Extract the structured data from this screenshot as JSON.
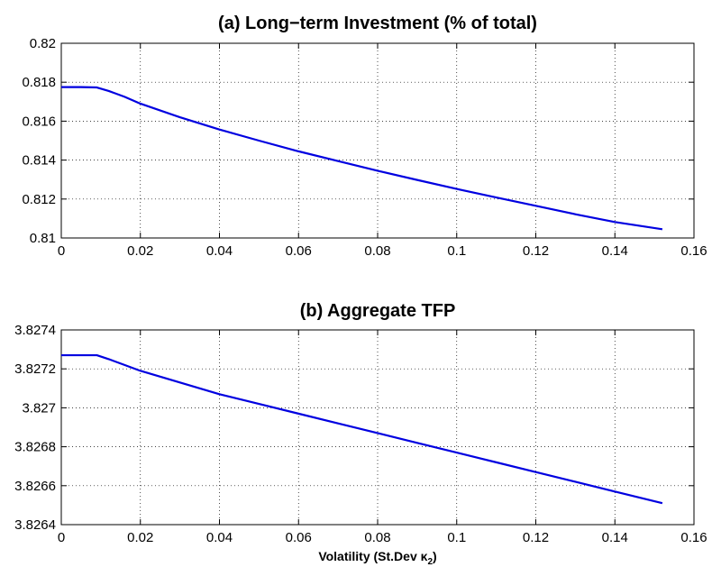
{
  "chart_data": [
    {
      "type": "line",
      "title": "(a) Long−term Investment (% of total)",
      "xlabel": "",
      "ylabel": "",
      "xlim": [
        0,
        0.16
      ],
      "ylim": [
        0.81,
        0.82
      ],
      "grid": true,
      "line_color": "#0000e0",
      "xticks": [
        "0",
        "0.02",
        "0.04",
        "0.06",
        "0.08",
        "0.1",
        "0.12",
        "0.14",
        "0.16"
      ],
      "yticks": [
        "0.81",
        "0.812",
        "0.814",
        "0.816",
        "0.818",
        "0.82"
      ],
      "series": [
        {
          "x": [
            0,
            0.005,
            0.009,
            0.012,
            0.016,
            0.02,
            0.03,
            0.04,
            0.05,
            0.06,
            0.07,
            0.08,
            0.09,
            0.1,
            0.11,
            0.12,
            0.13,
            0.14,
            0.152
          ],
          "y": [
            0.81775,
            0.81775,
            0.81773,
            0.81755,
            0.81725,
            0.8169,
            0.8162,
            0.81557,
            0.815,
            0.81445,
            0.81395,
            0.81345,
            0.81298,
            0.81252,
            0.81208,
            0.81165,
            0.81122,
            0.81082,
            0.81045
          ]
        }
      ]
    },
    {
      "type": "line",
      "title": "(b) Aggregate TFP",
      "xlabel": "Volatility (St.Dev κ",
      "xlabel_subscript": "2",
      "xlabel_suffix": ")",
      "ylabel": "",
      "xlim": [
        0,
        0.16
      ],
      "ylim": [
        3.8264,
        3.8274
      ],
      "grid": true,
      "line_color": "#0000e0",
      "xticks": [
        "0",
        "0.02",
        "0.04",
        "0.06",
        "0.08",
        "0.1",
        "0.12",
        "0.14",
        "0.16"
      ],
      "yticks": [
        "3.8264",
        "3.8266",
        "3.8268",
        "3.827",
        "3.8272",
        "3.8274"
      ],
      "series": [
        {
          "x": [
            0,
            0.005,
            0.009,
            0.012,
            0.016,
            0.02,
            0.03,
            0.04,
            0.05,
            0.06,
            0.07,
            0.08,
            0.09,
            0.1,
            0.11,
            0.12,
            0.13,
            0.14,
            0.152
          ],
          "y": [
            3.82727,
            3.82727,
            3.82727,
            3.82725,
            3.82722,
            3.82719,
            3.82713,
            3.82707,
            3.82702,
            3.82697,
            3.82692,
            3.82687,
            3.82682,
            3.82677,
            3.82672,
            3.82667,
            3.82662,
            3.82657,
            3.82651
          ]
        }
      ]
    }
  ]
}
